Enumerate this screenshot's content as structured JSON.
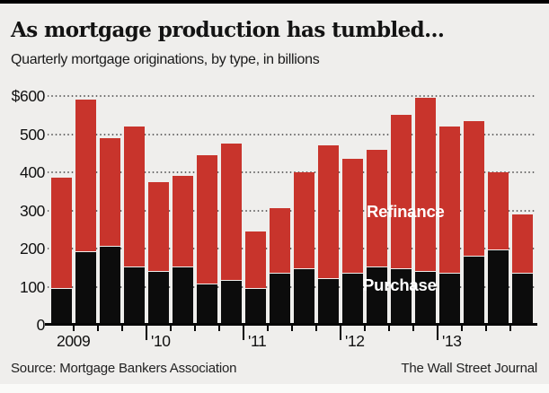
{
  "page": {
    "title": "As mortgage production has tumbled...",
    "subtitle": "Quarterly mortgage originations, by type, in billions",
    "source": "Source: Mortgage Bankers Association",
    "credit": "The Wall Street Journal"
  },
  "colors": {
    "background": "#efeeec",
    "top_rule": "#000000",
    "refinance": "#c8342c",
    "purchase": "#0c0c0c",
    "grid_dots": "#6a6a6a"
  },
  "chart_data": {
    "type": "bar",
    "stacked": true,
    "title": "As mortgage production has tumbled...",
    "subtitle": "Quarterly mortgage originations, by type, in billions",
    "units": "billions of dollars",
    "ylim": [
      0,
      600
    ],
    "grid": "dotted horizontal gridlines every 100",
    "legend_position": "labels overlaid on bars",
    "y_tick_values": [
      600,
      500,
      400,
      300,
      200,
      100,
      0
    ],
    "y_tick_labels": [
      "$600",
      "500",
      "400",
      "300",
      "200",
      "100",
      "0"
    ],
    "x_year_labels": [
      "2009",
      "'10",
      "'11",
      "'12",
      "'13"
    ],
    "categories": [
      "2009 Q1",
      "2009 Q2",
      "2009 Q3",
      "2009 Q4",
      "2010 Q1",
      "2010 Q2",
      "2010 Q3",
      "2010 Q4",
      "2011 Q1",
      "2011 Q2",
      "2011 Q3",
      "2011 Q4",
      "2012 Q1",
      "2012 Q2",
      "2012 Q3",
      "2012 Q4",
      "2013 Q1",
      "2013 Q2",
      "2013 Q3",
      "2013 Q4"
    ],
    "series": [
      {
        "name": "Purchase",
        "color": "#0c0c0c",
        "values": [
          95,
          190,
          205,
          150,
          140,
          150,
          105,
          115,
          95,
          135,
          145,
          120,
          135,
          150,
          145,
          140,
          135,
          180,
          195,
          135
        ]
      },
      {
        "name": "Refinance",
        "color": "#c8342c",
        "values": [
          290,
          400,
          285,
          370,
          235,
          240,
          340,
          360,
          150,
          170,
          255,
          350,
          300,
          310,
          405,
          455,
          385,
          355,
          205,
          155
        ]
      }
    ],
    "totals": [
      385,
      590,
      490,
      520,
      375,
      390,
      445,
      475,
      245,
      305,
      400,
      470,
      435,
      460,
      550,
      595,
      520,
      535,
      400,
      290
    ]
  }
}
